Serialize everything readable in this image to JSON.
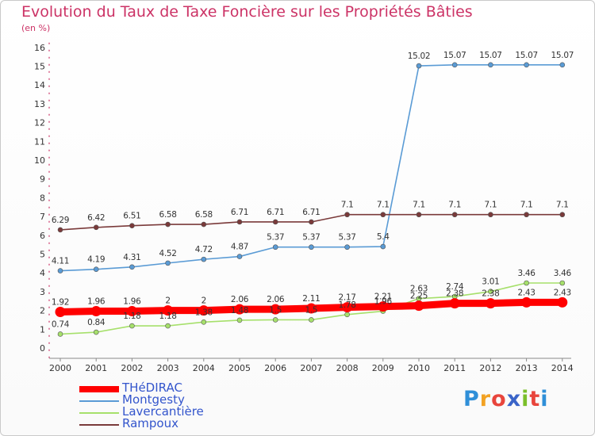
{
  "title": "Evolution du Taux de Taxe Foncière sur les Propriétés Bâties",
  "subtitle": "(en %)",
  "logo": {
    "letters": [
      "P",
      "r",
      "o",
      "x",
      "i",
      "t",
      "i"
    ],
    "colors": [
      "#2f8fd8",
      "#f2a223",
      "#e8453c",
      "#3a64c8",
      "#7bbf2a",
      "#e8453c",
      "#2f8fd8"
    ]
  },
  "chart_data": {
    "type": "line",
    "x": [
      "2000",
      "2001",
      "2002",
      "2003",
      "2004",
      "2005",
      "2006",
      "2007",
      "2008",
      "2009",
      "2010",
      "2011",
      "2012",
      "2013",
      "2014"
    ],
    "yticks": [
      "0",
      "1",
      "2",
      "3",
      "4",
      "5",
      "6",
      "7",
      "8",
      "9",
      "10",
      "11",
      "12",
      "13",
      "14",
      "15",
      "16"
    ],
    "ylim": [
      0,
      16
    ],
    "grid": false,
    "legend": "bottom-left",
    "series": [
      {
        "name": "THéDIRAC",
        "color": "#ff0000",
        "values": [
          1.92,
          1.96,
          1.96,
          2,
          2,
          2.06,
          2.06,
          2.11,
          2.17,
          2.21,
          2.25,
          2.38,
          2.38,
          2.43,
          2.43
        ],
        "labels": [
          "1.92",
          "1.96",
          "1.96",
          "2",
          "2",
          "2.06",
          "2.06",
          "2.11",
          "2.17",
          "2.21",
          "2.25",
          "2.38",
          "2.38",
          "2.43",
          "2.43"
        ]
      },
      {
        "name": "Montgesty",
        "color": "#5a9bd5",
        "values": [
          4.11,
          4.19,
          4.31,
          4.52,
          4.72,
          4.87,
          5.37,
          5.37,
          5.37,
          5.4,
          15.02,
          15.07,
          15.07,
          15.07,
          15.07
        ],
        "labels": [
          "4.11",
          "4.19",
          "4.31",
          "4.52",
          "4.72",
          "4.87",
          "5.37",
          "5.37",
          "5.37",
          "5.4",
          "15.02",
          "15.07",
          "15.07",
          "15.07",
          "15.07"
        ]
      },
      {
        "name": "Lavercantière",
        "color": "#a6e06b",
        "values": [
          0.74,
          0.84,
          1.18,
          1.18,
          1.38,
          1.48,
          1.5,
          1.5,
          1.78,
          1.96,
          2.63,
          2.74,
          3.01,
          3.46,
          3.46
        ],
        "labels": [
          "0.74",
          "0.84",
          "1.18",
          "1.18",
          "1.38",
          "1.48",
          "1.5",
          "1.5",
          "1.78",
          "1.96",
          "2.63",
          "2.74",
          "3.01",
          "3.46",
          "3.46"
        ]
      },
      {
        "name": "Rampoux",
        "color": "#7a3a3a",
        "values": [
          6.29,
          6.42,
          6.51,
          6.58,
          6.58,
          6.71,
          6.71,
          6.71,
          7.1,
          7.1,
          7.1,
          7.1,
          7.1,
          7.1,
          7.1
        ],
        "labels": [
          "6.29",
          "6.42",
          "6.51",
          "6.58",
          "6.58",
          "6.71",
          "6.71",
          "6.71",
          "7.1",
          "7.1",
          "7.1",
          "7.1",
          "7.1",
          "7.1",
          "7.1"
        ]
      }
    ]
  }
}
